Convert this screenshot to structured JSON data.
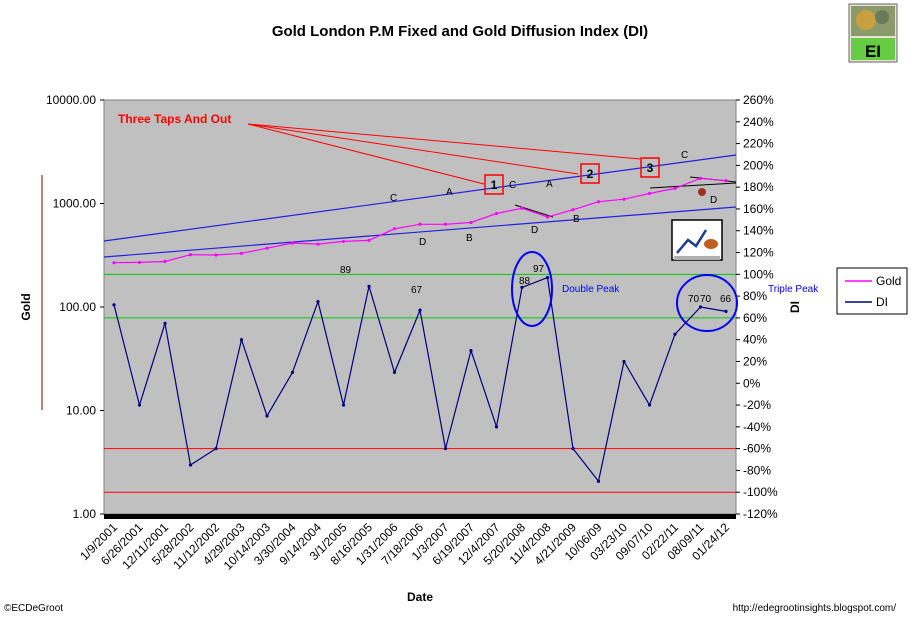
{
  "chart_data": {
    "type": "line",
    "title": "Gold London P.M Fixed and Gold Diffusion Index (DI)",
    "xlabel": "Date",
    "y_left_label": "Gold",
    "y_right_label": "DI",
    "y_left_scale": "log",
    "y_left_ticks": [
      "10000.00",
      "1000.00",
      "100.00",
      "10.00",
      "1.00"
    ],
    "y_right_ticks": [
      "260%",
      "240%",
      "220%",
      "200%",
      "180%",
      "160%",
      "140%",
      "120%",
      "100%",
      "80%",
      "60%",
      "40%",
      "20%",
      "0%",
      "-20%",
      "-40%",
      "-60%",
      "-80%",
      "-100%",
      "-120%"
    ],
    "x_ticks": [
      "1/9/2001",
      "6/26/2001",
      "12/11/2001",
      "5/28/2002",
      "11/12/2002",
      "4/29/2003",
      "10/14/2003",
      "3/30/2004",
      "9/14/2004",
      "3/1/2005",
      "8/16/2005",
      "1/31/2006",
      "7/18/2006",
      "1/3/2007",
      "6/19/2007",
      "12/4/2007",
      "5/20/2008",
      "11/4/2008",
      "4/21/2009",
      "10/06/09",
      "03/23/10",
      "09/07/10",
      "02/22/11",
      "08/09/11",
      "01/24/12"
    ],
    "legend": {
      "placement": "right",
      "entries": [
        "Gold",
        "DI"
      ]
    },
    "series": [
      {
        "name": "Gold",
        "axis": "left",
        "color": "#ff00ff",
        "x": [
          "1/9/2001",
          "6/26/2001",
          "12/11/2001",
          "5/28/2002",
          "11/12/2002",
          "4/29/2003",
          "10/14/2003",
          "3/30/2004",
          "9/14/2004",
          "3/1/2005",
          "8/16/2005",
          "1/31/2006",
          "7/18/2006",
          "1/3/2007",
          "6/19/2007",
          "12/4/2007",
          "5/20/2008",
          "11/4/2008",
          "4/21/2009",
          "10/06/09",
          "03/23/10",
          "09/07/10",
          "02/22/11",
          "08/09/11",
          "01/24/12"
        ],
        "values": [
          268,
          270,
          275,
          320,
          318,
          330,
          370,
          415,
          405,
          430,
          440,
          570,
          630,
          630,
          655,
          800,
          900,
          740,
          870,
          1040,
          1100,
          1250,
          1400,
          1750,
          1660
        ]
      },
      {
        "name": "DI",
        "axis": "right",
        "color": "#000080",
        "x": [
          "1/9/2001",
          "6/26/2001",
          "12/11/2001",
          "5/28/2002",
          "11/12/2002",
          "4/29/2003",
          "10/14/2003",
          "3/30/2004",
          "9/14/2004",
          "3/1/2005",
          "8/16/2005",
          "1/31/2006",
          "7/18/2006",
          "1/3/2007",
          "6/19/2007",
          "12/4/2007",
          "5/20/2008",
          "11/4/2008",
          "4/21/2009",
          "10/06/09",
          "03/23/10",
          "09/07/10",
          "02/22/11",
          "08/09/11",
          "01/24/12"
        ],
        "values": [
          72,
          -20,
          55,
          -75,
          -60,
          40,
          -30,
          10,
          75,
          -20,
          89,
          10,
          67,
          -60,
          30,
          -40,
          88,
          97,
          -60,
          -90,
          20,
          -20,
          45,
          70,
          66
        ]
      }
    ],
    "reference_lines": [
      {
        "axis": "right",
        "value": 100,
        "color": "#00cc00"
      },
      {
        "axis": "right",
        "value": 60,
        "color": "#00cc00"
      },
      {
        "axis": "right",
        "value": -60,
        "color": "#ff0000"
      },
      {
        "axis": "right",
        "value": -100,
        "color": "#ff0000"
      }
    ],
    "annotations": {
      "three_taps": "Three Taps And Out",
      "box1": "1",
      "box2": "2",
      "box3": "3",
      "double_peak": "Double Peak",
      "triple_peak": "Triple Peak",
      "di_89": "89",
      "di_67": "67",
      "di_88": "88",
      "di_97": "97",
      "di_70a": "70",
      "di_70b": "70",
      "di_66": "66",
      "wave_C1": "C",
      "wave_A1": "A",
      "wave_D1": "D",
      "wave_B1": "B",
      "wave_C2": "C",
      "wave_A2": "A",
      "wave_D2": "D",
      "wave_B2": "B",
      "wave_C3": "C",
      "wave_D3": "D"
    },
    "logo_text": "EI",
    "copyright": "©ECDeGroot",
    "site": "http://edegrootinsights.blogspot.com/"
  }
}
